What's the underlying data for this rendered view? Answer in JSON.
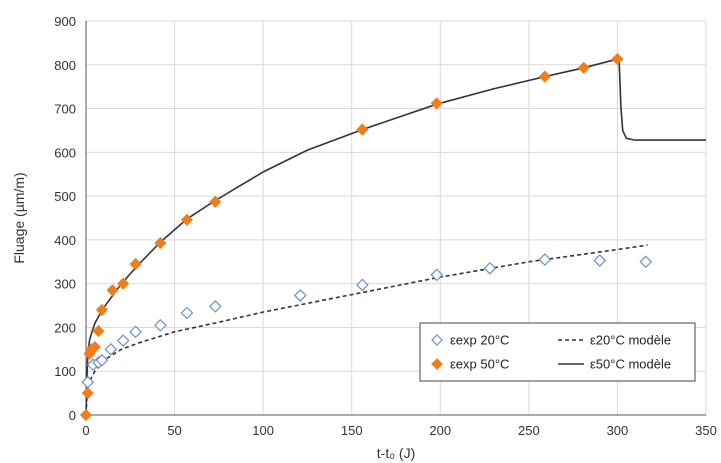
{
  "chart_data": {
    "type": "scatter",
    "xlabel": "t-t₀ (J)",
    "ylabel": "Fluage (µm/m)",
    "xlim": [
      0,
      350
    ],
    "ylim": [
      0,
      900
    ],
    "x_ticks": [
      0,
      50,
      100,
      150,
      200,
      250,
      300,
      350
    ],
    "y_ticks": [
      0,
      100,
      200,
      300,
      400,
      500,
      600,
      700,
      800,
      900
    ],
    "grid": true,
    "legend_position": "bottom-right",
    "series": [
      {
        "name": "εexp 20°C",
        "kind": "scatter",
        "marker": "diamond-open",
        "color": "#6b8fc7",
        "points": [
          [
            1,
            75
          ],
          [
            4,
            115
          ],
          [
            7,
            120
          ],
          [
            9,
            125
          ],
          [
            14,
            150
          ],
          [
            21,
            170
          ],
          [
            28,
            190
          ],
          [
            42,
            205
          ],
          [
            57,
            233
          ],
          [
            73,
            248
          ],
          [
            121,
            273
          ],
          [
            156,
            297
          ],
          [
            198,
            320
          ],
          [
            228,
            335
          ],
          [
            259,
            355
          ],
          [
            290,
            353
          ],
          [
            316,
            350
          ]
        ]
      },
      {
        "name": "εexp 50°C",
        "kind": "scatter",
        "marker": "diamond-filled",
        "color": "#ee7d1d",
        "points": [
          [
            0,
            0
          ],
          [
            1,
            50
          ],
          [
            2,
            140
          ],
          [
            3,
            150
          ],
          [
            5,
            155
          ],
          [
            7,
            192
          ],
          [
            9,
            240
          ],
          [
            15,
            285
          ],
          [
            21,
            300
          ],
          [
            28,
            345
          ],
          [
            42,
            393
          ],
          [
            57,
            446
          ],
          [
            73,
            487
          ],
          [
            156,
            652
          ],
          [
            198,
            712
          ],
          [
            259,
            773
          ],
          [
            281,
            793
          ],
          [
            300,
            813
          ]
        ]
      },
      {
        "name": "ε20°C modèle",
        "kind": "line",
        "style": "dashed",
        "color": "#333333",
        "points": [
          [
            0,
            0
          ],
          [
            0.5,
            40
          ],
          [
            1,
            60
          ],
          [
            3,
            85
          ],
          [
            5,
            100
          ],
          [
            10,
            125
          ],
          [
            20,
            150
          ],
          [
            30,
            165
          ],
          [
            50,
            190
          ],
          [
            75,
            212
          ],
          [
            100,
            235
          ],
          [
            150,
            275
          ],
          [
            200,
            315
          ],
          [
            250,
            350
          ],
          [
            300,
            378
          ],
          [
            317,
            388
          ]
        ]
      },
      {
        "name": "ε50°C modèle",
        "kind": "line",
        "style": "solid",
        "color": "#333333",
        "points": [
          [
            0,
            0
          ],
          [
            0.5,
            80
          ],
          [
            1,
            140
          ],
          [
            2,
            170
          ],
          [
            3,
            185
          ],
          [
            5,
            210
          ],
          [
            10,
            245
          ],
          [
            20,
            300
          ],
          [
            30,
            345
          ],
          [
            42,
            395
          ],
          [
            57,
            448
          ],
          [
            73,
            490
          ],
          [
            100,
            555
          ],
          [
            125,
            605
          ],
          [
            156,
            652
          ],
          [
            198,
            710
          ],
          [
            230,
            745
          ],
          [
            259,
            773
          ],
          [
            281,
            793
          ],
          [
            300,
            813
          ],
          [
            301,
            805
          ],
          [
            302,
            700
          ],
          [
            303,
            650
          ],
          [
            305,
            632
          ],
          [
            310,
            628
          ],
          [
            350,
            628
          ]
        ]
      }
    ]
  }
}
